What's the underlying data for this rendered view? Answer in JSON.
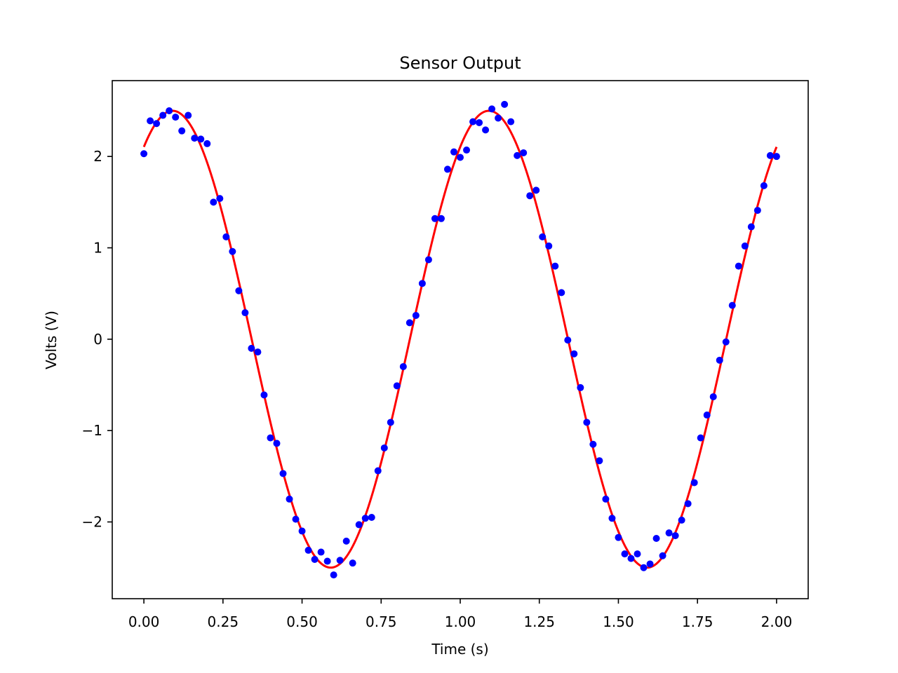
{
  "chart_data": {
    "type": "scatter",
    "title": "Sensor Output",
    "xlabel": "Time (s)",
    "ylabel": "Volts (V)",
    "xlim": [
      -0.1,
      2.1
    ],
    "ylim": [
      -2.84,
      2.83
    ],
    "xticks": [
      0.0,
      0.25,
      0.5,
      0.75,
      1.0,
      1.25,
      1.5,
      1.75,
      2.0
    ],
    "xtick_labels": [
      "0.00",
      "0.25",
      "0.50",
      "0.75",
      "1.00",
      "1.25",
      "1.50",
      "1.75",
      "2.00"
    ],
    "yticks": [
      -2,
      -1,
      0,
      1,
      2
    ],
    "ytick_labels": [
      "−2",
      "−1",
      "0",
      "1",
      "2"
    ],
    "grid": false,
    "legend": "none",
    "colors": {
      "points": "#0000ff",
      "fit": "#ff0000"
    },
    "series": [
      {
        "kind": "scatter",
        "x": [
          0.0,
          0.02,
          0.04,
          0.06,
          0.08,
          0.1,
          0.12,
          0.14,
          0.16,
          0.18,
          0.2,
          0.22,
          0.24,
          0.26,
          0.28,
          0.3,
          0.32,
          0.34,
          0.36,
          0.38,
          0.4,
          0.42,
          0.44,
          0.46,
          0.48,
          0.5,
          0.52,
          0.54,
          0.56,
          0.58,
          0.6,
          0.62,
          0.64,
          0.66,
          0.68,
          0.7,
          0.72,
          0.74,
          0.76,
          0.78,
          0.8,
          0.82,
          0.84,
          0.86,
          0.88,
          0.9,
          0.92,
          0.94,
          0.96,
          0.98,
          1.0,
          1.02,
          1.04,
          1.06,
          1.08,
          1.1,
          1.12,
          1.14,
          1.16,
          1.18,
          1.2,
          1.22,
          1.24,
          1.26,
          1.28,
          1.3,
          1.32,
          1.34,
          1.36,
          1.38,
          1.4,
          1.42,
          1.44,
          1.46,
          1.48,
          1.5,
          1.52,
          1.54,
          1.56,
          1.58,
          1.6,
          1.62,
          1.64,
          1.66,
          1.68,
          1.7,
          1.72,
          1.74,
          1.76,
          1.78,
          1.8,
          1.82,
          1.84,
          1.86,
          1.88,
          1.9,
          1.92,
          1.94,
          1.96,
          1.98,
          2.0
        ],
        "y": [
          2.03,
          2.39,
          2.36,
          2.45,
          2.5,
          2.43,
          2.28,
          2.45,
          2.2,
          2.19,
          2.14,
          1.5,
          1.54,
          1.12,
          0.96,
          0.53,
          0.29,
          -0.1,
          -0.14,
          -0.61,
          -1.08,
          -1.14,
          -1.47,
          -1.75,
          -1.97,
          -2.1,
          -2.31,
          -2.41,
          -2.33,
          -2.43,
          -2.58,
          -2.42,
          -2.21,
          -2.45,
          -2.03,
          -1.96,
          -1.95,
          -1.44,
          -1.19,
          -0.91,
          -0.51,
          -0.3,
          0.18,
          0.26,
          0.61,
          0.87,
          1.32,
          1.32,
          1.86,
          2.05,
          1.99,
          2.07,
          2.38,
          2.37,
          2.29,
          2.52,
          2.42,
          2.57,
          2.38,
          2.01,
          2.04,
          1.57,
          1.63,
          1.12,
          1.02,
          0.8,
          0.51,
          -0.01,
          -0.16,
          -0.53,
          -0.91,
          -1.15,
          -1.33,
          -1.75,
          -1.96,
          -2.17,
          -2.35,
          -2.4,
          -2.35,
          -2.5,
          -2.46,
          -2.18,
          -2.37,
          -2.12,
          -2.15,
          -1.98,
          -1.8,
          -1.57,
          -1.08,
          -0.83,
          -0.63,
          -0.23,
          -0.03,
          0.37,
          0.8,
          1.02,
          1.23,
          1.41,
          1.68,
          2.01,
          2.0
        ]
      },
      {
        "kind": "line",
        "amplitude": 2.5,
        "frequency": 1.0,
        "phase": 0.57,
        "x_range": [
          0.0,
          2.0
        ]
      }
    ]
  }
}
